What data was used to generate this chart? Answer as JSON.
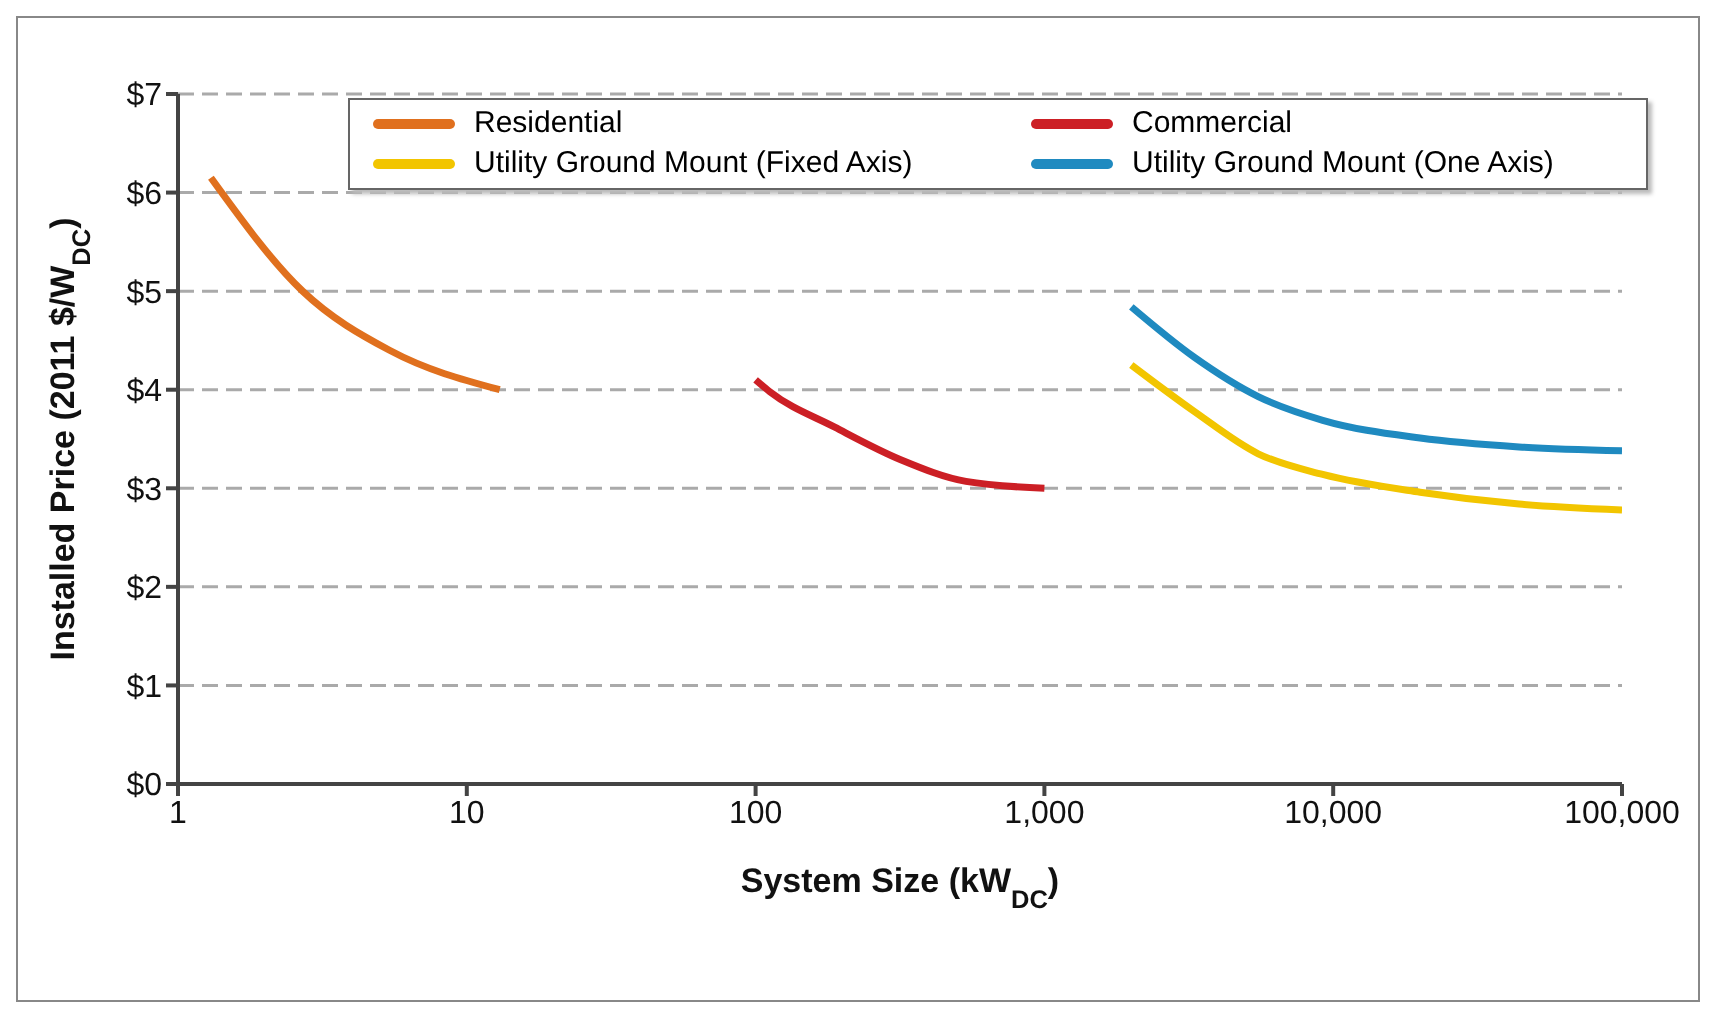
{
  "chart_data": {
    "type": "line",
    "xlabel": "System Size (kW$_{DC}$)",
    "ylabel": "Installed Price (2011 $/W$_{DC}$)",
    "log": "x",
    "xlim": [
      1,
      100000
    ],
    "xticks": [
      1,
      10,
      100,
      {
        "value": 1000,
        "label": "1,000"
      },
      {
        "value": 10000,
        "label": "10,000"
      },
      {
        "value": 100000,
        "label": "100,000"
      }
    ],
    "ylim": [
      0,
      7
    ],
    "yticks": [
      {
        "value": 0,
        "label": "$0"
      },
      {
        "value": 1,
        "label": "$1"
      },
      {
        "value": 2,
        "label": "$2"
      },
      {
        "value": 3,
        "label": "$3"
      },
      {
        "value": 4,
        "label": "$4"
      },
      {
        "value": 5,
        "label": "$5"
      },
      {
        "value": 6,
        "label": "$6"
      },
      {
        "value": 7,
        "label": "$7"
      }
    ],
    "grid": "y",
    "legend": "top",
    "marker": "none",
    "line_style": "solid",
    "series": [
      {
        "name": "Residential",
        "color": "#e0701e",
        "x": [
          1.3,
          2.7,
          5.4,
          13
        ],
        "values": [
          6.15,
          5.0,
          4.4,
          4.0
        ]
      },
      {
        "name": "Commercial",
        "color": "#cc1f25",
        "x": [
          100,
          112,
          188,
          318,
          535,
          1000
        ],
        "values": [
          4.1,
          3.98,
          3.62,
          3.29,
          3.07,
          3.0
        ]
      },
      {
        "name": "Utility Ground Mount (Fixed Axis)",
        "color": "#f2c500",
        "x": [
          2000,
          3300,
          5500,
          9200,
          20000,
          44000,
          100000
        ],
        "values": [
          4.25,
          3.78,
          3.35,
          3.14,
          2.96,
          2.84,
          2.78
        ]
      },
      {
        "name": "Utility Ground Mount (One Axis)",
        "color": "#1f8ac0",
        "x": [
          2000,
          3300,
          5500,
          9200,
          20000,
          44000,
          100000
        ],
        "values": [
          4.84,
          4.33,
          3.93,
          3.69,
          3.51,
          3.42,
          3.38
        ]
      }
    ]
  }
}
